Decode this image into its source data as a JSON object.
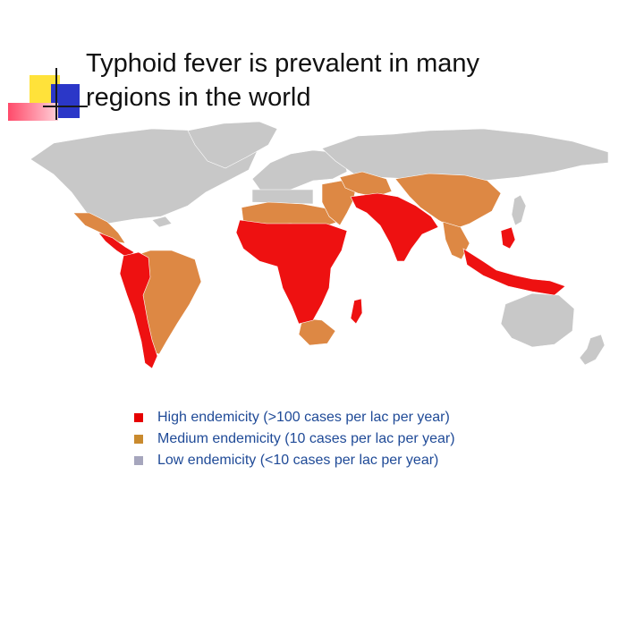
{
  "slide": {
    "title_line1": "Typhoid fever is prevalent in many",
    "title_line2": "regions in the world"
  },
  "map": {
    "categories": [
      {
        "key": "high",
        "color": "#ee1111"
      },
      {
        "key": "medium",
        "color": "#dd8844"
      },
      {
        "key": "low",
        "color": "#c8c8c8"
      }
    ]
  },
  "legend": {
    "items": [
      {
        "label": "High endemicity (>100 cases per lac per year)",
        "color": "#e60000"
      },
      {
        "label": "Medium endemicity (10 cases per lac per year)",
        "color": "#c98a2e"
      },
      {
        "label": "Low endemicity (<10 cases per lac per year)",
        "color": "#a6a6bd"
      }
    ]
  }
}
